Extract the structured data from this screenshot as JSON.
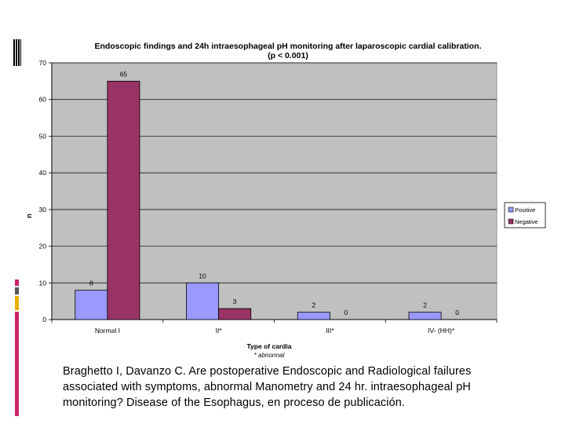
{
  "chart_data": {
    "type": "bar",
    "title": "Endoscopic findings and 24h intraesophageal pH monitoring after laparoscopic cardial calibration.",
    "subtitle": "(p < 0.001)",
    "xlabel": "Type of cardia",
    "xlabel_note": "* abnormal",
    "ylabel": "n",
    "ylim": [
      0,
      70
    ],
    "yticks": [
      0,
      10,
      20,
      30,
      40,
      50,
      60,
      70
    ],
    "grid": true,
    "legend_position": "right",
    "categories": [
      "Normal  I",
      "II*",
      "III*",
      "IV- (HH)*"
    ],
    "series": [
      {
        "name": "Positive",
        "values": [
          8,
          10,
          2,
          2
        ],
        "color": "#9999ff"
      },
      {
        "name": "Negative",
        "values": [
          65,
          3,
          0,
          0
        ],
        "color": "#993366"
      }
    ],
    "plot_background": "#c0c0c0"
  },
  "caption": {
    "line1": "Braghetto I, Davanzo C. Are postoperative Endoscopic and Radiological failures",
    "line2": "associated with symptoms, abnormal Manometry and 24 hr. intraesophageal pH",
    "line3": "monitoring? Disease of the Esophagus, en proceso de  publicación."
  },
  "colors": {
    "accent_magenta": "#c8246a",
    "accent_gray": "#555555",
    "accent_gold": "#e8b000"
  }
}
